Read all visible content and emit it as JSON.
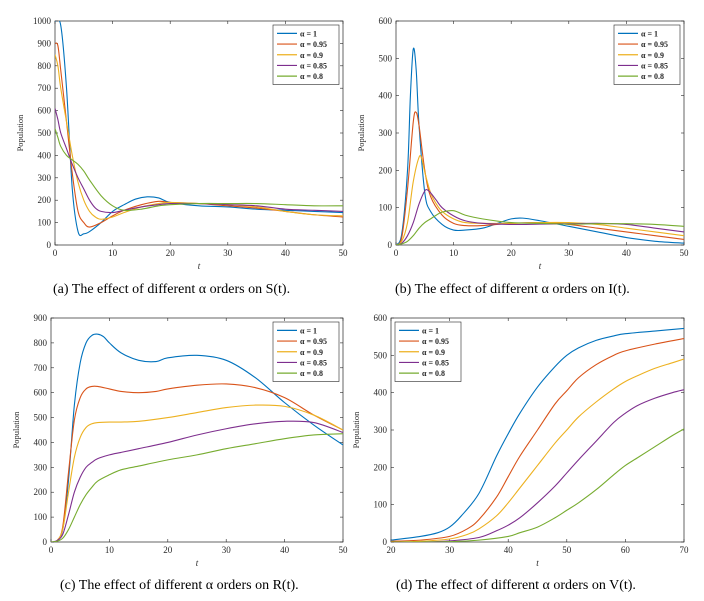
{
  "series_colors": [
    "#0072BD",
    "#D95319",
    "#EDB120",
    "#7E2F8E",
    "#77AC30"
  ],
  "chart_data": [
    {
      "id": "a",
      "type": "line",
      "caption": "(a)  The effect of different α orders on S(t).",
      "xlabel": "t",
      "ylabel": "Population",
      "xlim": [
        0,
        50
      ],
      "ylim": [
        0,
        1000
      ],
      "xticks": [
        0,
        10,
        20,
        30,
        40,
        50
      ],
      "yticks": [
        0,
        100,
        200,
        300,
        400,
        500,
        600,
        700,
        800,
        900,
        1000
      ],
      "legend_position": "top-right",
      "series": [
        {
          "name": "α = 1",
          "x": [
            0,
            1,
            2,
            3,
            4,
            5,
            6,
            8,
            10,
            12,
            14,
            16,
            18,
            20,
            25,
            30,
            35,
            40,
            45,
            50
          ],
          "y": [
            1000,
            980,
            700,
            250,
            60,
            50,
            60,
            100,
            150,
            180,
            205,
            215,
            210,
            190,
            175,
            170,
            160,
            155,
            150,
            145
          ]
        },
        {
          "name": "α = 0.95",
          "x": [
            0,
            0.5,
            1,
            2,
            3,
            4,
            5,
            6,
            8,
            10,
            12,
            15,
            18,
            20,
            25,
            30,
            35,
            40,
            45,
            50
          ],
          "y": [
            900,
            890,
            780,
            550,
            320,
            150,
            100,
            80,
            100,
            130,
            155,
            180,
            195,
            190,
            185,
            175,
            165,
            150,
            135,
            125
          ]
        },
        {
          "name": "α = 0.9",
          "x": [
            0,
            0.5,
            1,
            2,
            3,
            4,
            5,
            6,
            7,
            8,
            10,
            12,
            15,
            18,
            20,
            25,
            30,
            35,
            40,
            45,
            50
          ],
          "y": [
            850,
            800,
            700,
            550,
            400,
            280,
            200,
            150,
            125,
            115,
            125,
            145,
            170,
            185,
            190,
            185,
            180,
            170,
            150,
            135,
            130
          ]
        },
        {
          "name": "α = 0.85",
          "x": [
            0,
            0.5,
            1,
            2,
            3,
            4,
            5,
            6,
            7,
            8,
            10,
            12,
            15,
            18,
            20,
            25,
            30,
            35,
            40,
            45,
            50
          ],
          "y": [
            610,
            560,
            500,
            430,
            360,
            300,
            250,
            200,
            165,
            150,
            145,
            155,
            170,
            180,
            185,
            185,
            180,
            175,
            160,
            155,
            150
          ]
        },
        {
          "name": "α = 0.8",
          "x": [
            0,
            0.5,
            1,
            2,
            3,
            4,
            5,
            6,
            8,
            10,
            12,
            15,
            18,
            20,
            25,
            30,
            35,
            40,
            45,
            50
          ],
          "y": [
            520,
            480,
            440,
            400,
            380,
            360,
            330,
            290,
            220,
            175,
            155,
            160,
            175,
            180,
            185,
            185,
            185,
            180,
            175,
            175
          ]
        }
      ]
    },
    {
      "id": "b",
      "type": "line",
      "caption": "(b)  The effect of different α orders on I(t).",
      "xlabel": "t",
      "ylabel": "Population",
      "xlim": [
        0,
        50
      ],
      "ylim": [
        0,
        600
      ],
      "xticks": [
        0,
        10,
        20,
        30,
        40,
        50
      ],
      "yticks": [
        0,
        100,
        200,
        300,
        400,
        500,
        600
      ],
      "legend_position": "top-right",
      "series": [
        {
          "name": "α = 1",
          "x": [
            0,
            1,
            2,
            2.5,
            3,
            3.5,
            4,
            5,
            6,
            8,
            10,
            12,
            15,
            18,
            20,
            22,
            25,
            30,
            35,
            40,
            45,
            50
          ],
          "y": [
            0,
            30,
            200,
            400,
            525,
            470,
            320,
            140,
            90,
            55,
            40,
            40,
            45,
            60,
            70,
            72,
            65,
            50,
            35,
            20,
            10,
            5
          ]
        },
        {
          "name": "α = 0.95",
          "x": [
            0,
            1,
            2,
            3,
            3.5,
            4,
            5,
            6,
            8,
            10,
            12,
            15,
            20,
            25,
            30,
            35,
            40,
            45,
            50
          ],
          "y": [
            0,
            20,
            150,
            330,
            355,
            320,
            200,
            130,
            80,
            58,
            52,
            52,
            58,
            60,
            55,
            45,
            35,
            25,
            15
          ]
        },
        {
          "name": "α = 0.9",
          "x": [
            0,
            1,
            2,
            3,
            4,
            4.5,
            5,
            6,
            7,
            8,
            10,
            12,
            15,
            20,
            25,
            30,
            35,
            40,
            45,
            50
          ],
          "y": [
            0,
            10,
            60,
            170,
            235,
            230,
            195,
            140,
            110,
            90,
            70,
            60,
            58,
            58,
            60,
            60,
            55,
            45,
            35,
            25
          ]
        },
        {
          "name": "α = 0.85",
          "x": [
            0,
            1,
            2,
            3,
            4,
            5,
            5.5,
            6,
            7,
            8,
            10,
            12,
            15,
            20,
            25,
            30,
            35,
            40,
            45,
            50
          ],
          "y": [
            0,
            5,
            25,
            60,
            110,
            145,
            147,
            140,
            120,
            100,
            78,
            65,
            58,
            55,
            56,
            57,
            58,
            55,
            45,
            35
          ]
        },
        {
          "name": "α = 0.8",
          "x": [
            0,
            1,
            2,
            3,
            4,
            5,
            6,
            7,
            8,
            10,
            12,
            15,
            20,
            25,
            30,
            35,
            40,
            45,
            50
          ],
          "y": [
            0,
            3,
            10,
            25,
            45,
            60,
            70,
            80,
            88,
            92,
            80,
            70,
            60,
            58,
            56,
            57,
            57,
            55,
            50
          ]
        }
      ]
    },
    {
      "id": "c",
      "type": "line",
      "caption": "(c)  The effect of different α orders on R(t).",
      "xlabel": "t",
      "ylabel": "Population",
      "xlim": [
        0,
        50
      ],
      "ylim": [
        0,
        900
      ],
      "xticks": [
        0,
        10,
        20,
        30,
        40,
        50
      ],
      "yticks": [
        0,
        100,
        200,
        300,
        400,
        500,
        600,
        700,
        800,
        900
      ],
      "legend_position": "top-right",
      "series": [
        {
          "name": "α = 1",
          "x": [
            0,
            1,
            2,
            3,
            4,
            5,
            6,
            7,
            8,
            9,
            10,
            12,
            15,
            18,
            20,
            25,
            30,
            35,
            40,
            45,
            50
          ],
          "y": [
            0,
            5,
            50,
            250,
            550,
            720,
            800,
            830,
            835,
            825,
            800,
            760,
            730,
            725,
            740,
            750,
            730,
            660,
            560,
            470,
            390
          ]
        },
        {
          "name": "α = 0.95",
          "x": [
            0,
            1,
            2,
            3,
            4,
            5,
            6,
            7,
            8,
            10,
            12,
            15,
            18,
            20,
            25,
            30,
            35,
            40,
            45,
            50
          ],
          "y": [
            0,
            5,
            60,
            280,
            490,
            580,
            615,
            625,
            625,
            615,
            605,
            600,
            605,
            615,
            630,
            635,
            620,
            580,
            510,
            450
          ]
        },
        {
          "name": "α = 0.9",
          "x": [
            0,
            1,
            2,
            3,
            4,
            5,
            6,
            7,
            8,
            10,
            12,
            15,
            20,
            25,
            30,
            35,
            40,
            45,
            50
          ],
          "y": [
            0,
            5,
            50,
            200,
            340,
            420,
            460,
            475,
            480,
            482,
            482,
            485,
            500,
            520,
            540,
            550,
            545,
            510,
            450
          ]
        },
        {
          "name": "α = 0.85",
          "x": [
            0,
            1,
            2,
            3,
            4,
            5,
            6,
            7,
            8,
            10,
            12,
            15,
            20,
            25,
            30,
            35,
            40,
            45,
            50
          ],
          "y": [
            0,
            5,
            30,
            110,
            200,
            260,
            300,
            320,
            335,
            350,
            360,
            375,
            400,
            430,
            455,
            475,
            485,
            480,
            440
          ]
        },
        {
          "name": "α = 0.8",
          "x": [
            0,
            1,
            2,
            3,
            4,
            5,
            6,
            7,
            8,
            10,
            12,
            15,
            20,
            25,
            30,
            35,
            40,
            45,
            50
          ],
          "y": [
            0,
            3,
            15,
            50,
            100,
            150,
            190,
            220,
            245,
            270,
            290,
            305,
            330,
            350,
            375,
            395,
            415,
            430,
            435
          ]
        }
      ]
    },
    {
      "id": "d",
      "type": "line",
      "caption": "(d)  The effect of different α orders on V(t).",
      "xlabel": "t",
      "ylabel": "Population",
      "xlim": [
        20,
        70
      ],
      "ylim": [
        0,
        600
      ],
      "xticks": [
        20,
        30,
        40,
        50,
        60,
        70
      ],
      "yticks": [
        0,
        100,
        200,
        300,
        400,
        500,
        600
      ],
      "legend_position": "top-left",
      "series": [
        {
          "name": "α = 1",
          "x": [
            20,
            25,
            28,
            30,
            32,
            35,
            38,
            40,
            42,
            45,
            48,
            50,
            52,
            55,
            58,
            60,
            65,
            70
          ],
          "y": [
            5,
            15,
            25,
            40,
            70,
            130,
            230,
            290,
            345,
            415,
            470,
            500,
            520,
            540,
            552,
            558,
            565,
            572
          ]
        },
        {
          "name": "α = 0.95",
          "x": [
            20,
            25,
            30,
            33,
            35,
            38,
            40,
            42,
            45,
            48,
            50,
            52,
            55,
            58,
            60,
            65,
            70
          ],
          "y": [
            2,
            5,
            15,
            35,
            60,
            120,
            175,
            230,
            300,
            370,
            405,
            440,
            475,
            500,
            512,
            530,
            545
          ]
        },
        {
          "name": "α = 0.9",
          "x": [
            20,
            25,
            30,
            33,
            35,
            38,
            40,
            42,
            45,
            48,
            50,
            52,
            55,
            58,
            60,
            62,
            65,
            68,
            70
          ],
          "y": [
            0,
            2,
            8,
            20,
            35,
            70,
            105,
            145,
            205,
            265,
            300,
            335,
            375,
            410,
            430,
            445,
            465,
            480,
            490
          ]
        },
        {
          "name": "α = 0.85",
          "x": [
            20,
            25,
            30,
            35,
            38,
            40,
            42,
            45,
            48,
            50,
            52,
            55,
            58,
            60,
            62,
            65,
            68,
            70
          ],
          "y": [
            0,
            0,
            3,
            12,
            30,
            45,
            65,
            105,
            150,
            185,
            220,
            270,
            320,
            345,
            365,
            385,
            400,
            408
          ]
        },
        {
          "name": "α = 0.8",
          "x": [
            20,
            25,
            30,
            35,
            40,
            42,
            45,
            48,
            50,
            52,
            55,
            58,
            60,
            62,
            65,
            68,
            70
          ],
          "y": [
            0,
            0,
            1,
            5,
            15,
            25,
            40,
            65,
            85,
            105,
            140,
            180,
            205,
            225,
            255,
            285,
            303
          ]
        }
      ]
    }
  ]
}
